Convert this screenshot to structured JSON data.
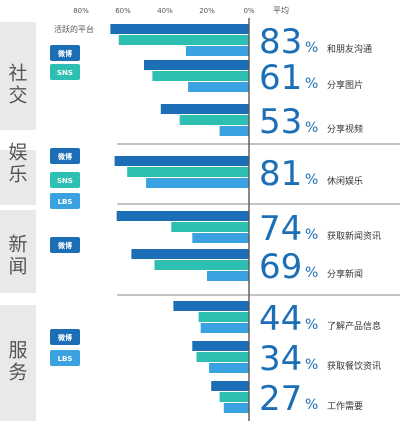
{
  "chart_data": {
    "type": "bar",
    "orientation": "horizontal-reversed",
    "header": {
      "platform_label": "活跃的平台",
      "avg_label": "平均"
    },
    "x_ticks": [
      "80%",
      "60%",
      "40%",
      "20%",
      "0%"
    ],
    "xlim": [
      0,
      80
    ],
    "colors": {
      "微博": "#1c6fb6",
      "SNS": "#2dbfb1",
      "LBS": "#3aa2e0",
      "axis": "#555555",
      "value_text": "#1c6fb6",
      "category_bg": "#e9e9e9",
      "category_text": "#555555"
    },
    "groups": [
      {
        "category": "社交",
        "platforms": [
          "微博",
          "SNS"
        ],
        "items": [
          {
            "label": "和朋友沟通",
            "average": "83",
            "bars": [
              {
                "series": "微博",
                "value": 66
              },
              {
                "series": "SNS",
                "value": 62
              },
              {
                "series": "LBS",
                "value": 30
              }
            ]
          },
          {
            "label": "分享图片",
            "average": "61",
            "bars": [
              {
                "series": "微博",
                "value": 50
              },
              {
                "series": "SNS",
                "value": 46
              },
              {
                "series": "LBS",
                "value": 29
              }
            ]
          },
          {
            "label": "分享视频",
            "average": "53",
            "bars": [
              {
                "series": "微博",
                "value": 42
              },
              {
                "series": "SNS",
                "value": 33
              },
              {
                "series": "LBS",
                "value": 14
              }
            ]
          }
        ]
      },
      {
        "category": "娱乐",
        "platforms": [
          "微博",
          "SNS",
          "LBS"
        ],
        "items": [
          {
            "label": "休闲娱乐",
            "average": "81",
            "bars": [
              {
                "series": "微博",
                "value": 64
              },
              {
                "series": "SNS",
                "value": 58
              },
              {
                "series": "LBS",
                "value": 49
              }
            ]
          }
        ]
      },
      {
        "category": "新闻",
        "platforms": [
          "微博"
        ],
        "items": [
          {
            "label": "获取新闻资讯",
            "average": "74",
            "bars": [
              {
                "series": "微博",
                "value": 63
              },
              {
                "series": "SNS",
                "value": 37
              },
              {
                "series": "LBS",
                "value": 27
              }
            ]
          },
          {
            "label": "分享新闻",
            "average": "69",
            "bars": [
              {
                "series": "微博",
                "value": 56
              },
              {
                "series": "SNS",
                "value": 45
              },
              {
                "series": "LBS",
                "value": 20
              }
            ]
          }
        ]
      },
      {
        "category": "服务",
        "platforms": [
          "微博",
          "LBS"
        ],
        "items": [
          {
            "label": "了解产品信息",
            "average": "44",
            "bars": [
              {
                "series": "微博",
                "value": 36
              },
              {
                "series": "SNS",
                "value": 24
              },
              {
                "series": "LBS",
                "value": 23
              }
            ]
          },
          {
            "label": "获取餐饮资讯",
            "average": "34",
            "bars": [
              {
                "series": "微博",
                "value": 27
              },
              {
                "series": "SNS",
                "value": 25
              },
              {
                "series": "LBS",
                "value": 19
              }
            ]
          },
          {
            "label": "工作需要",
            "average": "27",
            "bars": [
              {
                "series": "微博",
                "value": 18
              },
              {
                "series": "SNS",
                "value": 14
              },
              {
                "series": "LBS",
                "value": 12
              }
            ]
          }
        ]
      }
    ]
  }
}
